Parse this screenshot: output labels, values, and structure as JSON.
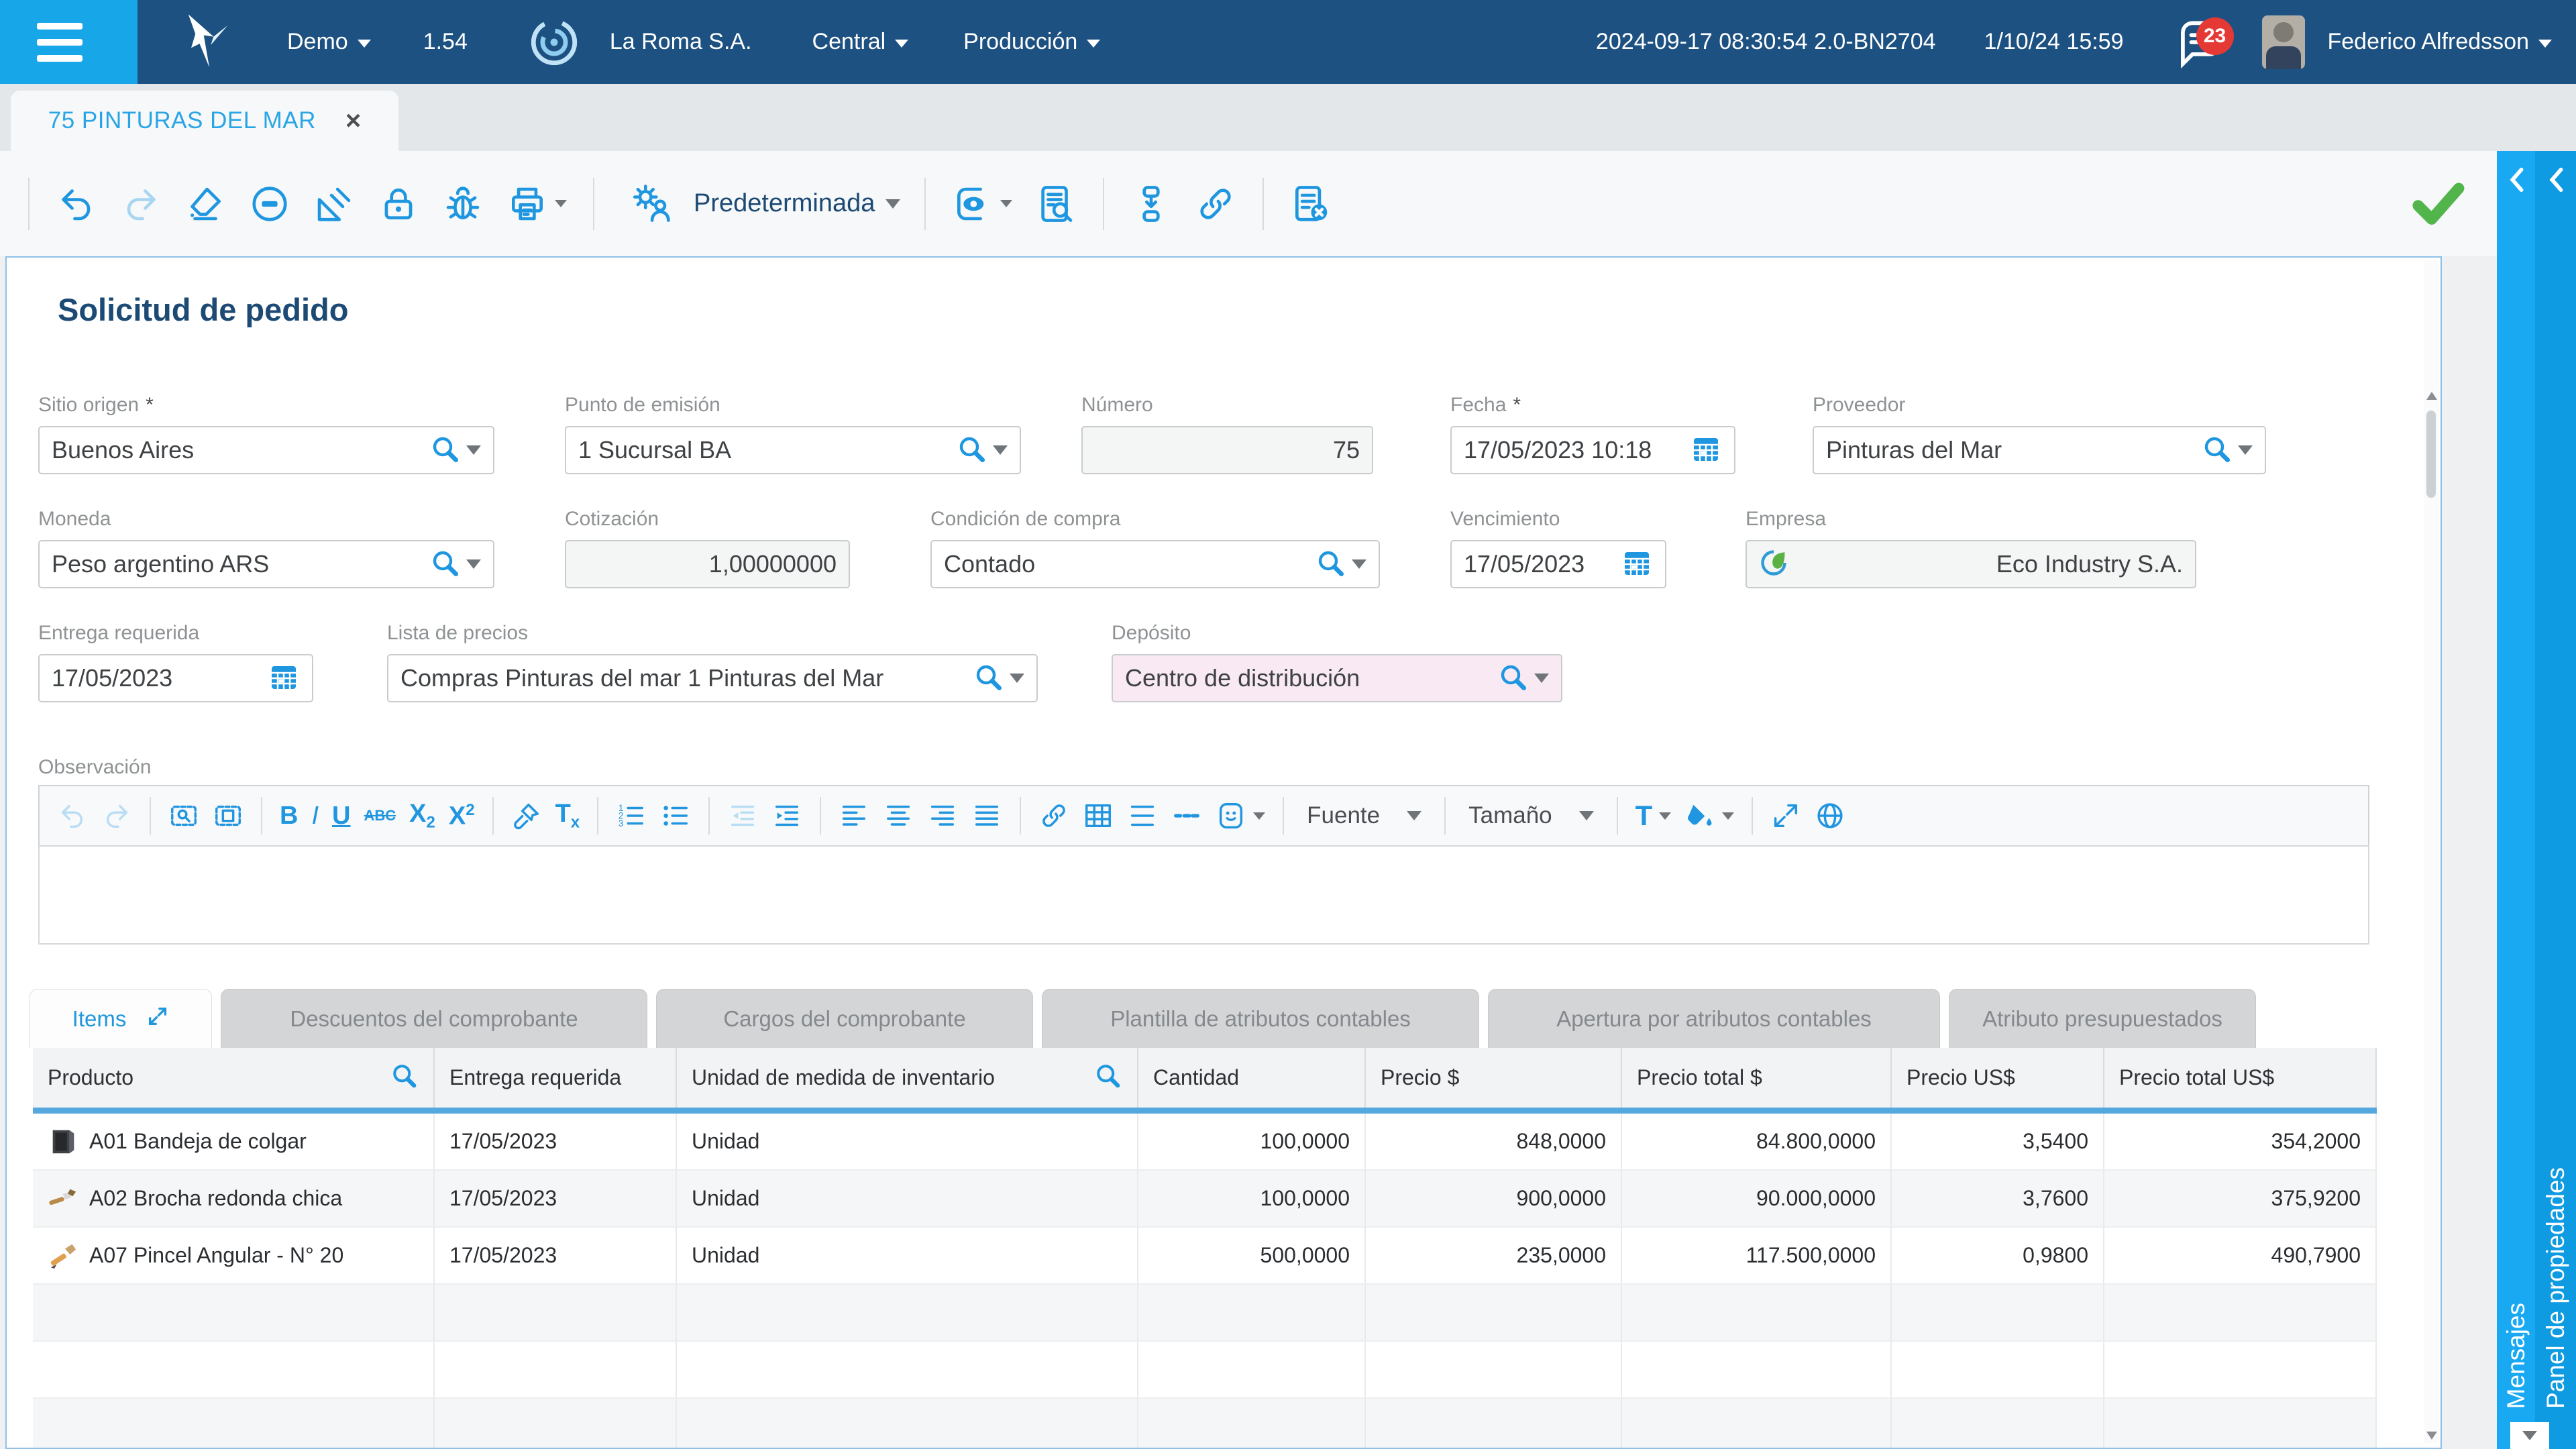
{
  "topbar": {
    "environment": "Demo",
    "version": "1.54",
    "company": "La Roma S.A.",
    "branch": "Central",
    "mode": "Producción",
    "build_info": "2024-09-17 08:30:54 2.0-BN2704",
    "datetime": "1/10/24 15:59",
    "notifications": "23",
    "user": "Federico Alfredsson"
  },
  "doc_tab": {
    "title": "75 PINTURAS DEL MAR",
    "close": "×"
  },
  "toolbar": {
    "view": "Predeterminada",
    "groups_left": [
      [
        "undo",
        "redo",
        "erase",
        "remove",
        "design",
        "lock",
        "debug",
        "print"
      ]
    ],
    "groups_right": [
      [
        "preview",
        "doc-search"
      ],
      [
        "flow",
        "link"
      ],
      [
        "cancel-list"
      ]
    ],
    "disabled": [
      "redo"
    ]
  },
  "page": {
    "title": "Solicitud de pedido"
  },
  "form": {
    "sitio_origen": {
      "label": "Sitio origen",
      "required": "*",
      "value": "Buenos Aires"
    },
    "punto_emision": {
      "label": "Punto de emisión",
      "value": "1 Sucursal BA"
    },
    "numero": {
      "label": "Número",
      "value": "75"
    },
    "fecha": {
      "label": "Fecha",
      "required": "*",
      "value": "17/05/2023 10:18"
    },
    "proveedor": {
      "label": "Proveedor",
      "value": "Pinturas del Mar"
    },
    "moneda": {
      "label": "Moneda",
      "value": "Peso argentino ARS"
    },
    "cotizacion": {
      "label": "Cotización",
      "value": "1,00000000"
    },
    "condicion": {
      "label": "Condición de compra",
      "value": "Contado"
    },
    "vencimiento": {
      "label": "Vencimiento",
      "value": "17/05/2023"
    },
    "empresa": {
      "label": "Empresa",
      "value": "Eco Industry S.A."
    },
    "entrega": {
      "label": "Entrega requerida",
      "value": "17/05/2023"
    },
    "lista_precios": {
      "label": "Lista de precios",
      "value": "Compras Pinturas del mar 1 Pinturas del Mar"
    },
    "deposito": {
      "label": "Depósito",
      "value": "Centro de distribución"
    }
  },
  "editor": {
    "label": "Observación",
    "font_label": "Fuente",
    "size_label": "Tamaño",
    "content": "",
    "icon_groups": [
      [
        "undo",
        "redo"
      ],
      [
        "find-box",
        "select-box"
      ],
      [
        "bold",
        "italic",
        "underline",
        "strike",
        "subscript",
        "superscript"
      ],
      [
        "painter",
        "clear-format"
      ],
      [
        "ordered-list",
        "unordered-list"
      ],
      [
        "outdent",
        "indent"
      ],
      [
        "align-left",
        "align-center",
        "align-right",
        "justify"
      ],
      [
        "link",
        "table",
        "line-height",
        "horizontal-rule",
        "emoji"
      ]
    ],
    "icon_groups_tail": [
      [
        "text-color",
        "fill-color"
      ],
      [
        "expand",
        "globe"
      ]
    ],
    "disabled": [
      "undo",
      "redo",
      "outdent"
    ]
  },
  "tabs": [
    "Items",
    "Descuentos del comprobante",
    "Cargos del comprobante",
    "Plantilla de atributos contables",
    "Apertura por atributos contables",
    "Atributo presupuestados"
  ],
  "table": {
    "columns": [
      "Producto",
      "Entrega requerida",
      "Unidad de medida de inventario",
      "Cantidad",
      "Precio $",
      "Precio total $",
      "Precio US$",
      "Precio total US$"
    ],
    "rows": [
      {
        "producto": "A01 Bandeja de colgar",
        "entrega": "17/05/2023",
        "unidad": "Unidad",
        "cantidad": "100,0000",
        "precio": "848,0000",
        "precio_total": "84.800,0000",
        "precio_us": "3,5400",
        "precio_total_us": "354,2000"
      },
      {
        "producto": "A02 Brocha redonda chica",
        "entrega": "17/05/2023",
        "unidad": "Unidad",
        "cantidad": "100,0000",
        "precio": "900,0000",
        "precio_total": "90.000,0000",
        "precio_us": "3,7600",
        "precio_total_us": "375,9200"
      },
      {
        "producto": "A07 Pincel Angular - N° 20",
        "entrega": "17/05/2023",
        "unidad": "Unidad",
        "cantidad": "500,0000",
        "precio": "235,0000",
        "precio_total": "117.500,0000",
        "precio_us": "0,9800",
        "precio_total_us": "490,7900"
      }
    ]
  },
  "side_panels": {
    "mensajes": "Mensajes",
    "propiedades": "Panel de propiedades"
  },
  "colors": {
    "accent": "#1e96e0",
    "topbar": "#1d5181",
    "hamburger": "#17a6e8",
    "success": "#52b54c",
    "badge": "#e53935",
    "deposito_bg": "#f8e9f3",
    "header_underline": "#55a8de"
  }
}
